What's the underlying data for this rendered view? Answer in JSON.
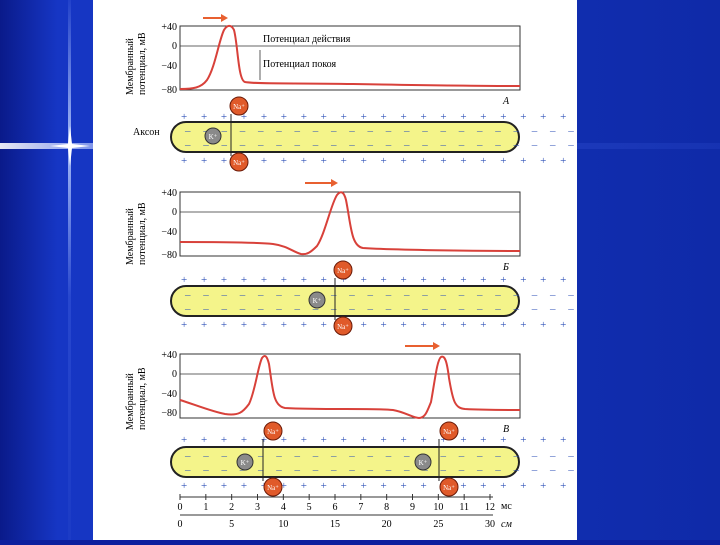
{
  "panels": [
    {
      "y_axis_label": [
        "Мембранный",
        "потенциал, мВ"
      ],
      "ticks": [
        "+40",
        "0",
        "−40",
        "−80"
      ],
      "letter": "А",
      "annotation_action": "Потенциал действия",
      "annotation_rest": "Потенциал покоя",
      "axon_label": "Аксон",
      "ion_na": "Na⁺",
      "ion_k": "K⁺"
    },
    {
      "y_axis_label": [
        "Мембранный",
        "потенциал, мВ"
      ],
      "ticks": [
        "+40",
        "0",
        "−40",
        "−80"
      ],
      "letter": "Б",
      "ion_na": "Na⁺",
      "ion_k": "K⁺"
    },
    {
      "y_axis_label": [
        "Мембранный",
        "потенциал, мВ"
      ],
      "ticks": [
        "+40",
        "0",
        "−40",
        "−80"
      ],
      "letter": "В",
      "ion_na": "Na⁺",
      "ion_k": "K⁺"
    }
  ],
  "x_axis": {
    "ms_ticks": [
      "0",
      "1",
      "2",
      "3",
      "4",
      "5",
      "6",
      "7",
      "8",
      "9",
      "10",
      "11",
      "12"
    ],
    "ms_unit": "мс",
    "cm_ticks": [
      "0",
      "5",
      "10",
      "15",
      "20",
      "25",
      "30"
    ],
    "cm_unit": "см"
  },
  "colors": {
    "axon_fill": "#f4f48a",
    "trace": "#d8413a",
    "plus": "#2f52b8",
    "minus": "#2f52b8",
    "ion": "#e05a2a",
    "k_ion": "#8a8a8a",
    "arrow": "#e86030"
  }
}
